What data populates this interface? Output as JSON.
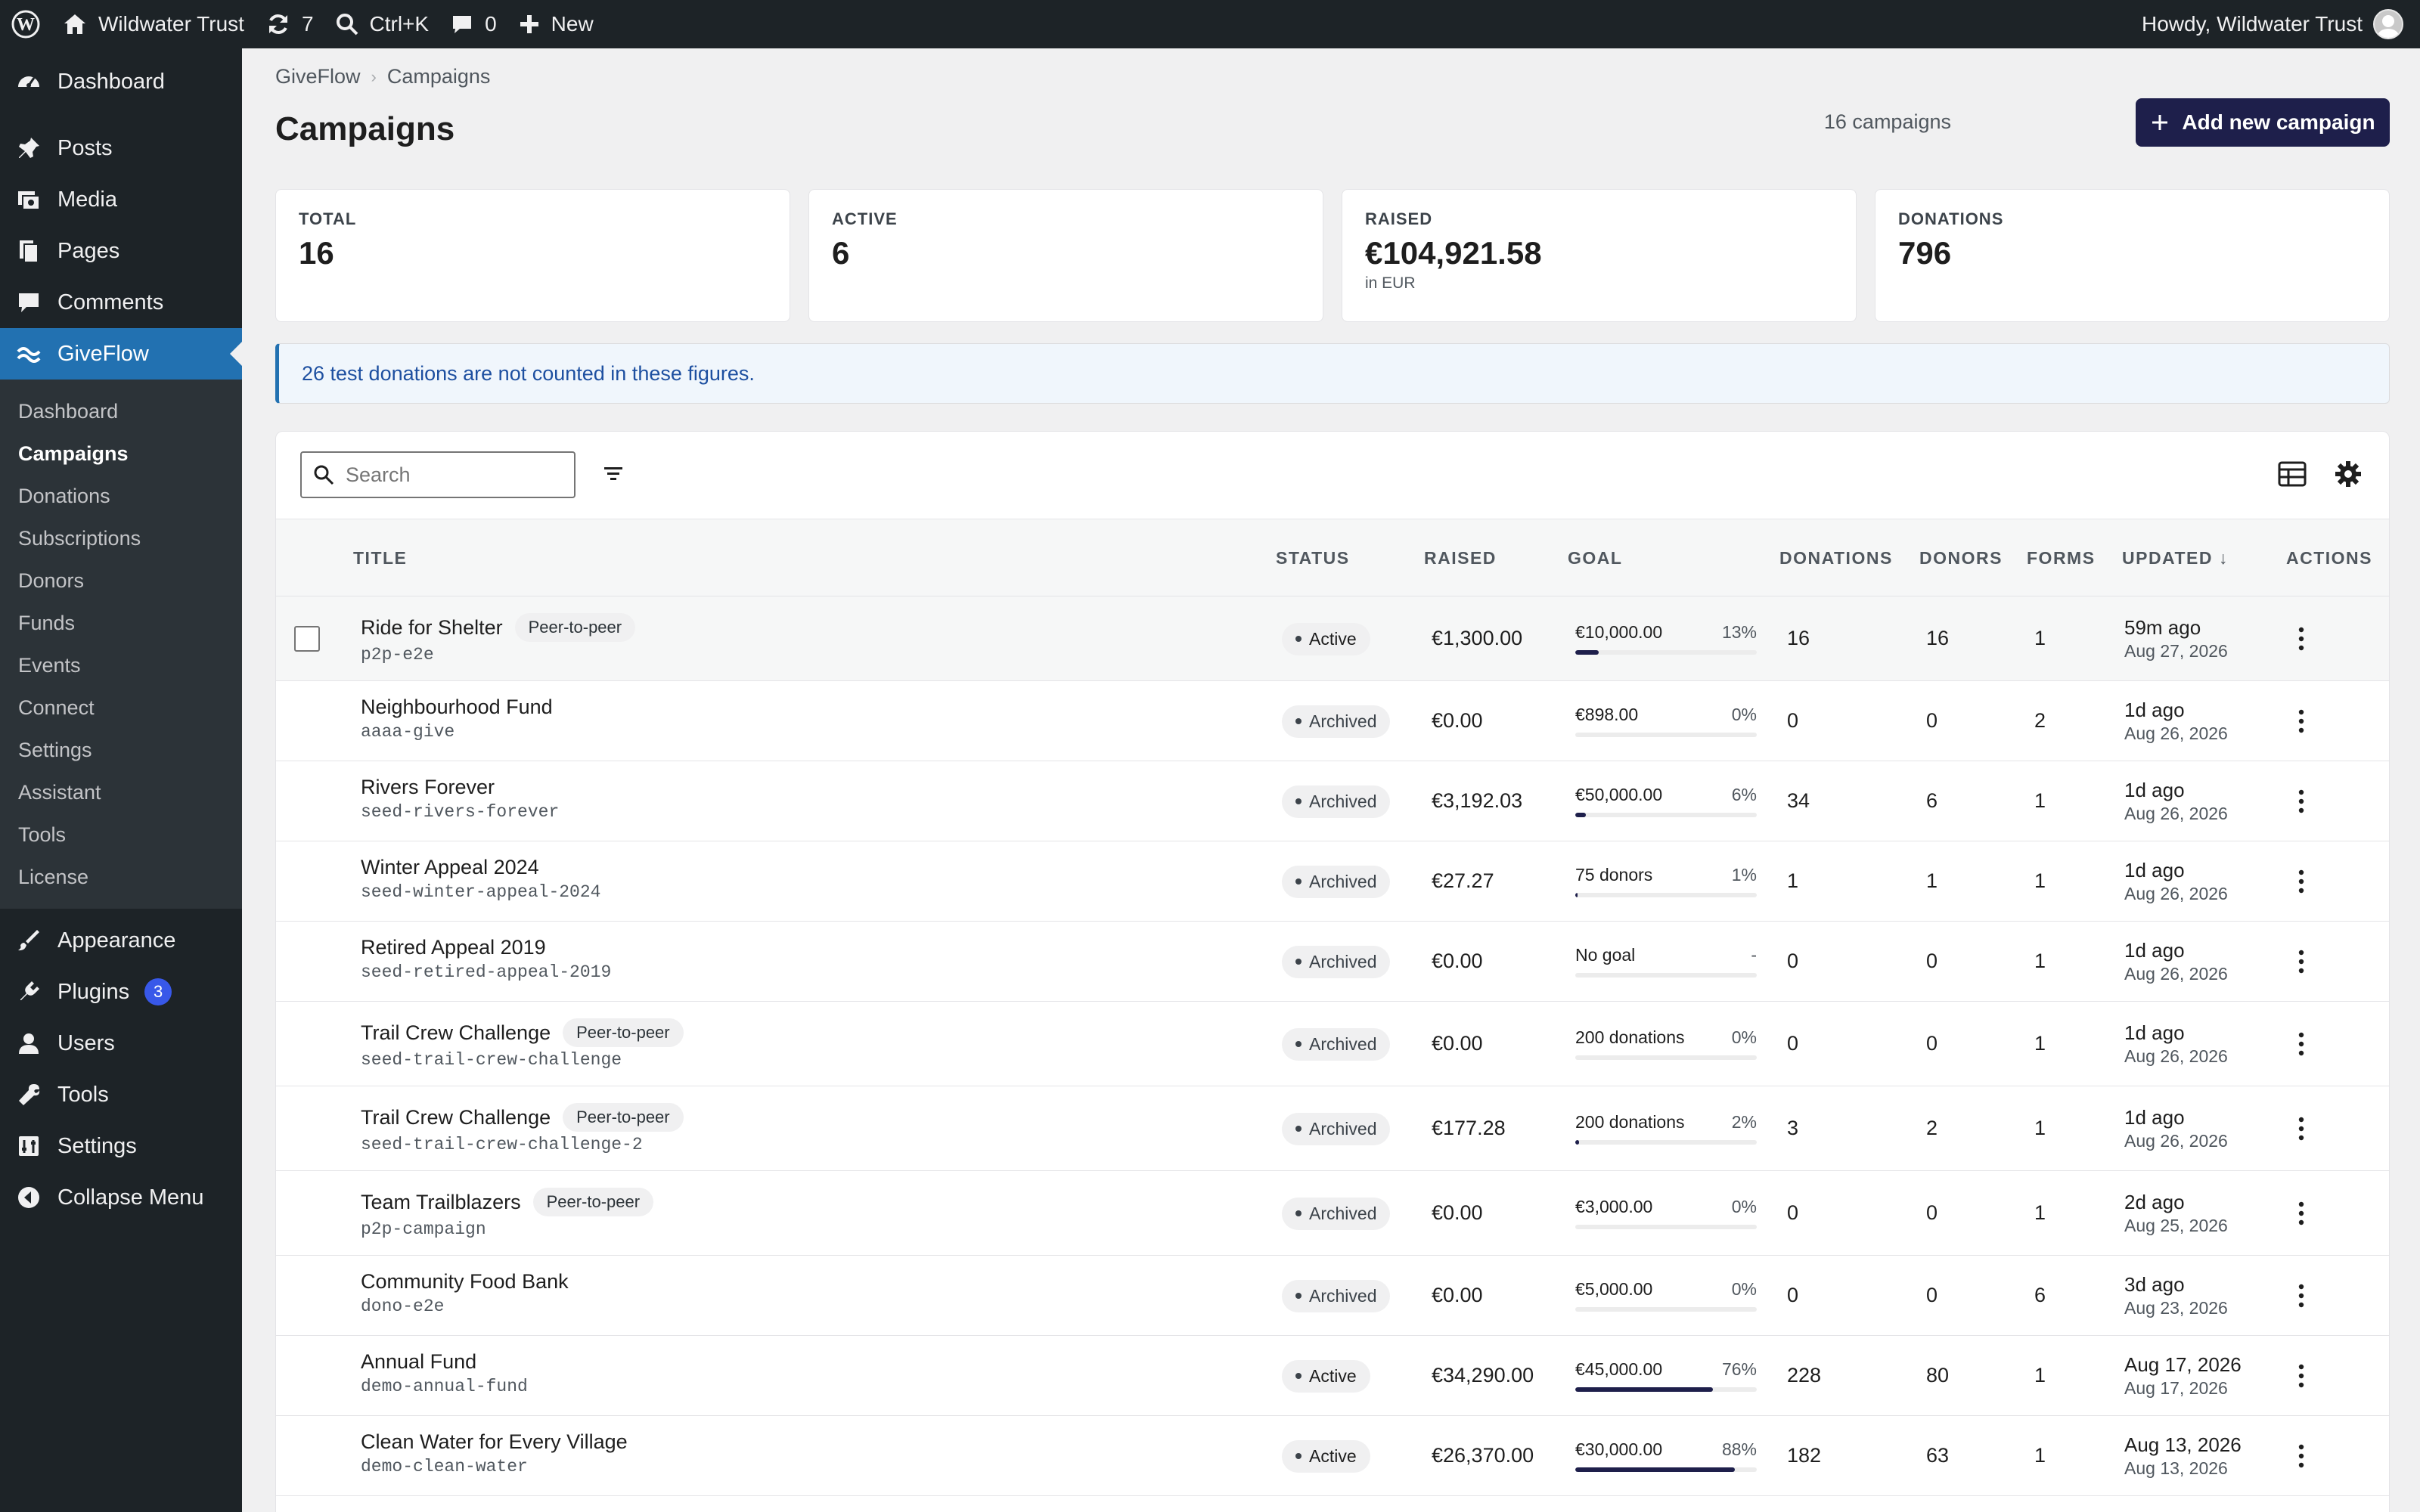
{
  "adminbar": {
    "site_name": "Wildwater Trust",
    "updates_count": "7",
    "search_shortcut": "Ctrl+K",
    "comments_count": "0",
    "new_label": "New",
    "howdy": "Howdy, Wildwater Trust"
  },
  "sidebar": {
    "top_items": [
      {
        "label": "Dashboard",
        "icon": "dashboard-icon"
      },
      {
        "label": "Posts",
        "icon": "pin-icon"
      },
      {
        "label": "Media",
        "icon": "media-icon"
      },
      {
        "label": "Pages",
        "icon": "pages-icon"
      },
      {
        "label": "Comments",
        "icon": "comment-icon"
      },
      {
        "label": "GiveFlow",
        "icon": "wave-icon"
      }
    ],
    "submenu": [
      "Dashboard",
      "Campaigns",
      "Donations",
      "Subscriptions",
      "Donors",
      "Funds",
      "Events",
      "Connect",
      "Settings",
      "Assistant",
      "Tools",
      "License"
    ],
    "bottom_items": [
      {
        "label": "Appearance",
        "icon": "brush-icon"
      },
      {
        "label": "Plugins",
        "icon": "plugin-icon",
        "badge": "3"
      },
      {
        "label": "Users",
        "icon": "user-icon"
      },
      {
        "label": "Tools",
        "icon": "wrench-icon"
      },
      {
        "label": "Settings",
        "icon": "settings-icon"
      },
      {
        "label": "Collapse Menu",
        "icon": "collapse-icon"
      }
    ]
  },
  "breadcrumb": [
    "GiveFlow",
    "Campaigns"
  ],
  "page": {
    "title": "Campaigns",
    "count_label": "16 campaigns",
    "add_button": "Add new campaign"
  },
  "stats": [
    {
      "label": "TOTAL",
      "value": "16",
      "sub": ""
    },
    {
      "label": "ACTIVE",
      "value": "6",
      "sub": ""
    },
    {
      "label": "RAISED",
      "value": "€104,921.58",
      "sub": "in EUR"
    },
    {
      "label": "DONATIONS",
      "value": "796",
      "sub": ""
    }
  ],
  "notice": "26 test donations are not counted in these figures.",
  "search": {
    "placeholder": "Search"
  },
  "columns": {
    "title": "TITLE",
    "status": "STATUS",
    "raised": "RAISED",
    "goal": "GOAL",
    "donations": "DONATIONS",
    "donors": "DONORS",
    "forms": "FORMS",
    "updated": "UPDATED ↓",
    "actions": "ACTIONS"
  },
  "rows": [
    {
      "title": "Ride for Shelter",
      "tag": "Peer-to-peer",
      "slug": "p2p-e2e",
      "status": "Active",
      "raised": "€1,300.00",
      "goal": "€10,000.00",
      "pct": "13%",
      "progress": 0.13,
      "donations": "16",
      "donors": "16",
      "forms": "1",
      "updated": "59m ago",
      "date": "Aug 27, 2026"
    },
    {
      "title": "Neighbourhood Fund",
      "tag": "",
      "slug": "aaaa-give",
      "status": "Archived",
      "raised": "€0.00",
      "goal": "€898.00",
      "pct": "0%",
      "progress": 0,
      "donations": "0",
      "donors": "0",
      "forms": "2",
      "updated": "1d ago",
      "date": "Aug 26, 2026"
    },
    {
      "title": "Rivers Forever",
      "tag": "",
      "slug": "seed-rivers-forever",
      "status": "Archived",
      "raised": "€3,192.03",
      "goal": "€50,000.00",
      "pct": "6%",
      "progress": 0.06,
      "donations": "34",
      "donors": "6",
      "forms": "1",
      "updated": "1d ago",
      "date": "Aug 26, 2026"
    },
    {
      "title": "Winter Appeal 2024",
      "tag": "",
      "slug": "seed-winter-appeal-2024",
      "status": "Archived",
      "raised": "€27.27",
      "goal": "75 donors",
      "pct": "1%",
      "progress": 0.01,
      "donations": "1",
      "donors": "1",
      "forms": "1",
      "updated": "1d ago",
      "date": "Aug 26, 2026"
    },
    {
      "title": "Retired Appeal 2019",
      "tag": "",
      "slug": "seed-retired-appeal-2019",
      "status": "Archived",
      "raised": "€0.00",
      "goal": "No goal",
      "pct": "-",
      "progress": 0,
      "donations": "0",
      "donors": "0",
      "forms": "1",
      "updated": "1d ago",
      "date": "Aug 26, 2026"
    },
    {
      "title": "Trail Crew Challenge",
      "tag": "Peer-to-peer",
      "slug": "seed-trail-crew-challenge",
      "status": "Archived",
      "raised": "€0.00",
      "goal": "200 donations",
      "pct": "0%",
      "progress": 0,
      "donations": "0",
      "donors": "0",
      "forms": "1",
      "updated": "1d ago",
      "date": "Aug 26, 2026"
    },
    {
      "title": "Trail Crew Challenge",
      "tag": "Peer-to-peer",
      "slug": "seed-trail-crew-challenge-2",
      "status": "Archived",
      "raised": "€177.28",
      "goal": "200 donations",
      "pct": "2%",
      "progress": 0.02,
      "donations": "3",
      "donors": "2",
      "forms": "1",
      "updated": "1d ago",
      "date": "Aug 26, 2026"
    },
    {
      "title": "Team Trailblazers",
      "tag": "Peer-to-peer",
      "slug": "p2p-campaign",
      "status": "Archived",
      "raised": "€0.00",
      "goal": "€3,000.00",
      "pct": "0%",
      "progress": 0,
      "donations": "0",
      "donors": "0",
      "forms": "1",
      "updated": "2d ago",
      "date": "Aug 25, 2026"
    },
    {
      "title": "Community Food Bank",
      "tag": "",
      "slug": "dono-e2e",
      "status": "Archived",
      "raised": "€0.00",
      "goal": "€5,000.00",
      "pct": "0%",
      "progress": 0,
      "donations": "0",
      "donors": "0",
      "forms": "6",
      "updated": "3d ago",
      "date": "Aug 23, 2026"
    },
    {
      "title": "Annual Fund",
      "tag": "",
      "slug": "demo-annual-fund",
      "status": "Active",
      "raised": "€34,290.00",
      "goal": "€45,000.00",
      "pct": "76%",
      "progress": 0.76,
      "donations": "228",
      "donors": "80",
      "forms": "1",
      "updated": "Aug 17, 2026",
      "date": "Aug 17, 2026"
    },
    {
      "title": "Clean Water for Every Village",
      "tag": "",
      "slug": "demo-clean-water",
      "status": "Active",
      "raised": "€26,370.00",
      "goal": "€30,000.00",
      "pct": "88%",
      "progress": 0.88,
      "donations": "182",
      "donors": "63",
      "forms": "1",
      "updated": "Aug 13, 2026",
      "date": "Aug 13, 2026"
    }
  ]
}
